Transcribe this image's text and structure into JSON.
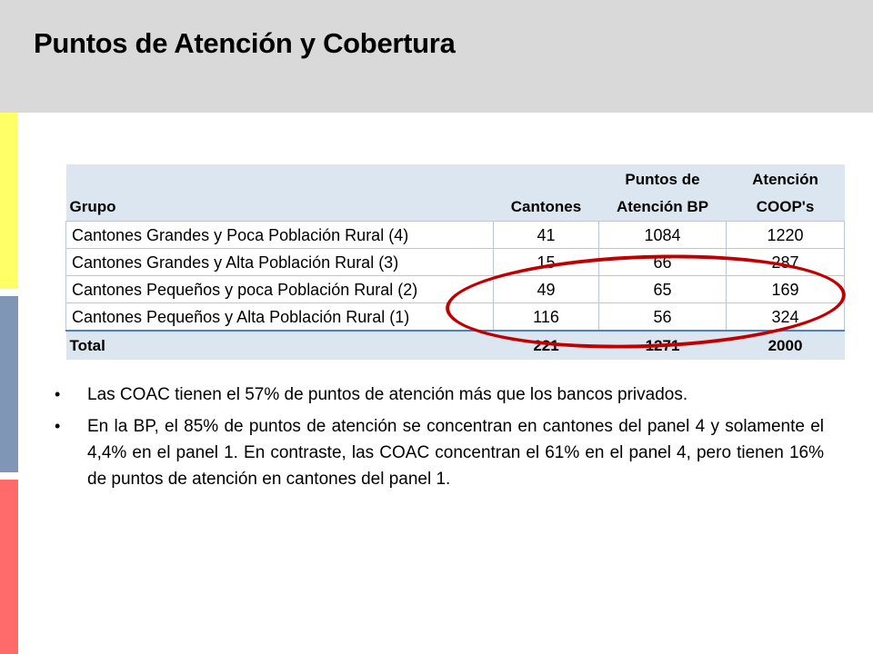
{
  "slide": {
    "title": "Puntos de Atención y Cobertura"
  },
  "table": {
    "headers": {
      "group": "Grupo",
      "cantones": "Cantones",
      "puntos_line1": "Puntos de",
      "puntos_line2": "Atención BP",
      "coop_line1": "Atención",
      "coop_line2": "COOP's"
    },
    "rows": [
      {
        "grupo": "Cantones Grandes y Poca Población Rural (4)",
        "cantones": "41",
        "puntos_bp": "1084",
        "coop": "1220"
      },
      {
        "grupo": "Cantones Grandes y Alta Población Rural (3)",
        "cantones": "15",
        "puntos_bp": "66",
        "coop": "287"
      },
      {
        "grupo": "Cantones Pequeños y poca Población Rural (2)",
        "cantones": "49",
        "puntos_bp": "65",
        "coop": "169"
      },
      {
        "grupo": "Cantones Pequeños y Alta Población Rural (1)",
        "cantones": "116",
        "puntos_bp": "56",
        "coop": "324"
      }
    ],
    "total": {
      "grupo": "Total",
      "cantones": "221",
      "puntos_bp": "1271",
      "coop": "2000"
    }
  },
  "bullets": [
    "Las COAC tienen el 57% de puntos de atención más que los bancos privados.",
    "En la BP, el 85% de puntos de atención se concentran en cantones del panel 4 y solamente el 4,4% en el panel 1. En contraste, las COAC concentran el 61% en el panel 4, pero tienen 16% de puntos de atención en cantones del panel 1."
  ],
  "colors": {
    "header_bg": "#d9d9d9",
    "table_header_bg": "#dce6f1",
    "highlight_ellipse": "#c00000",
    "accent_yellow": "#ffff66",
    "accent_blue": "#7f96b6",
    "accent_red": "#ff6b6b"
  }
}
